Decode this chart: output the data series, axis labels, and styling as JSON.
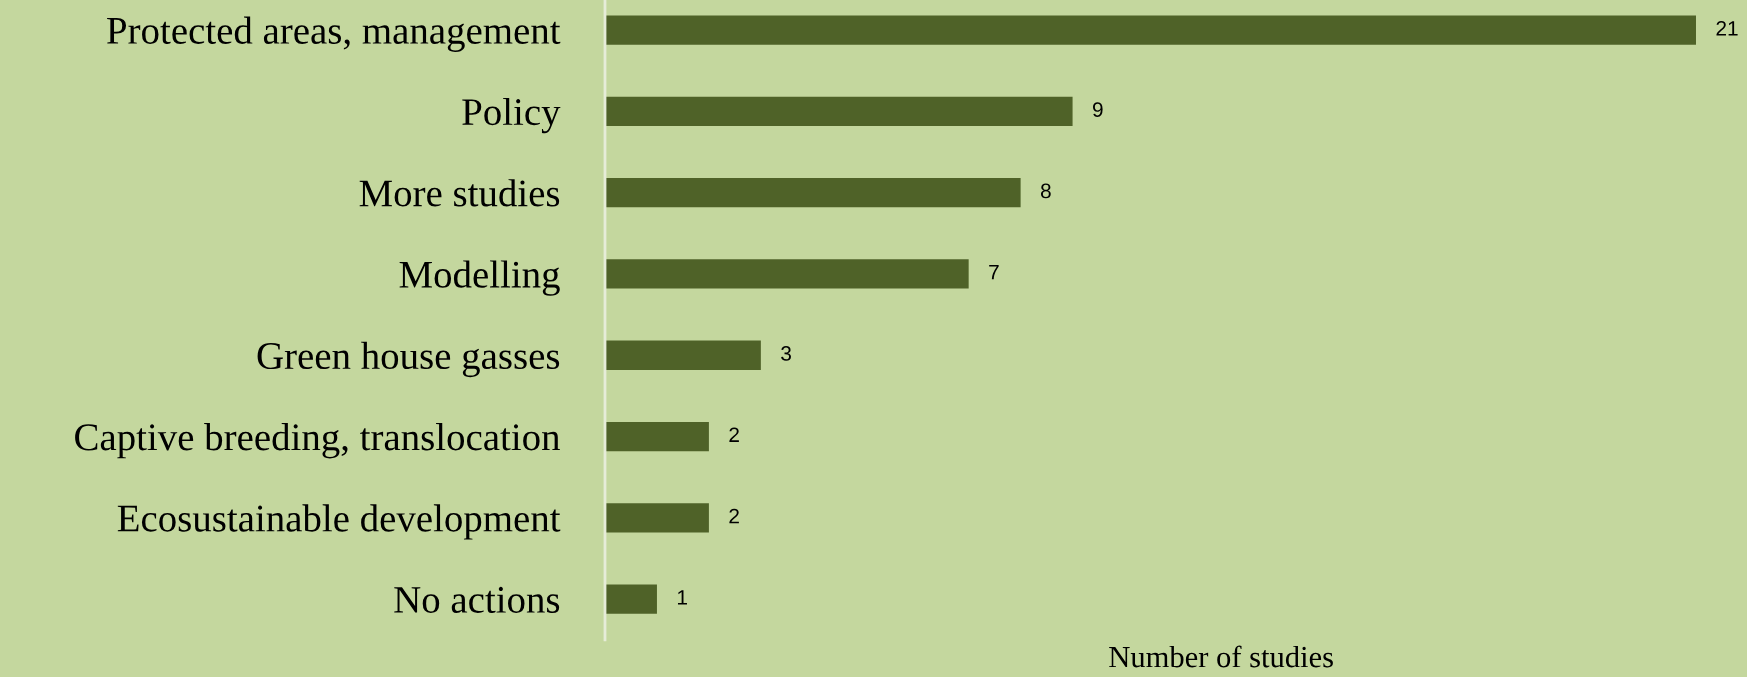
{
  "chart_data": {
    "type": "bar",
    "orientation": "horizontal",
    "categories": [
      "Protected areas, management",
      "Policy",
      "More studies",
      "Modelling",
      "Green house gasses",
      "Captive breeding, translocation",
      "Ecosustainable development",
      "No actions"
    ],
    "values": [
      21,
      9,
      8,
      7,
      3,
      2,
      2,
      1
    ],
    "color": "#4f6228",
    "xlabel": "Number of studies",
    "data_labels": true,
    "grid": false,
    "legend": false,
    "tick_labels": "y"
  }
}
